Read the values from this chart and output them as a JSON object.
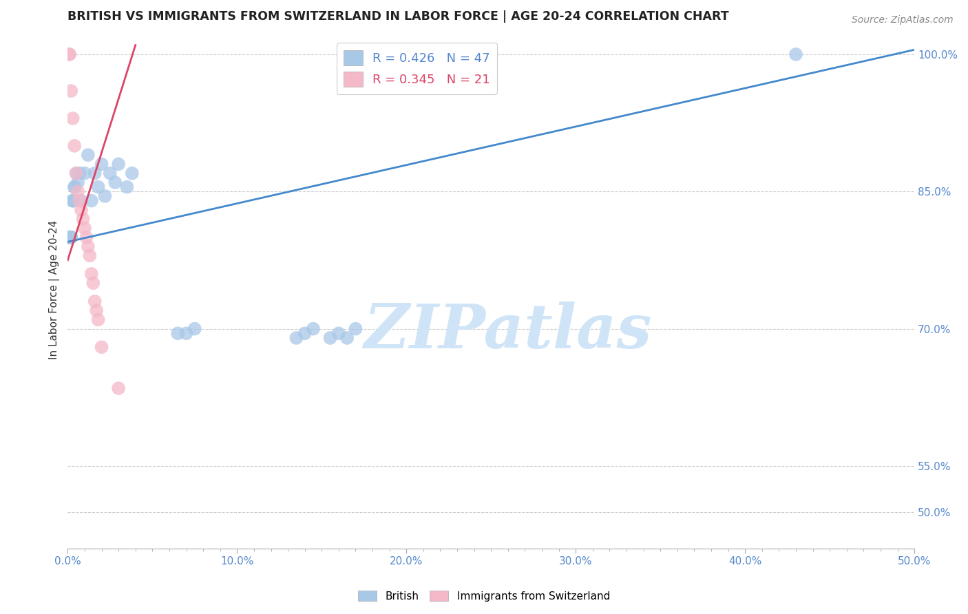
{
  "title": "BRITISH VS IMMIGRANTS FROM SWITZERLAND IN LABOR FORCE | AGE 20-24 CORRELATION CHART",
  "source": "Source: ZipAtlas.com",
  "ylabel": "In Labor Force | Age 20-24",
  "right_ytick_labels": [
    "100.0%",
    "85.0%",
    "70.0%",
    "55.0%",
    "50.0%"
  ],
  "right_ytick_values": [
    1.0,
    0.85,
    0.7,
    0.55,
    0.5
  ],
  "xlim": [
    0.0,
    0.5
  ],
  "ylim": [
    0.46,
    1.025
  ],
  "xtick_labels": [
    "0.0%",
    "",
    "",
    "",
    "",
    "",
    "",
    "",
    "",
    "",
    "10.0%",
    "",
    "",
    "",
    "",
    "",
    "",
    "",
    "",
    "",
    "20.0%",
    "",
    "",
    "",
    "",
    "",
    "",
    "",
    "",
    "",
    "30.0%",
    "",
    "",
    "",
    "",
    "",
    "",
    "",
    "",
    "",
    "40.0%",
    "",
    "",
    "",
    "",
    "",
    "",
    "",
    "",
    "",
    "50.0%"
  ],
  "xtick_values": [
    0.0,
    0.01,
    0.02,
    0.03,
    0.04,
    0.05,
    0.06,
    0.07,
    0.08,
    0.09,
    0.1,
    0.11,
    0.12,
    0.13,
    0.14,
    0.15,
    0.16,
    0.17,
    0.18,
    0.19,
    0.2,
    0.21,
    0.22,
    0.23,
    0.24,
    0.25,
    0.26,
    0.27,
    0.28,
    0.29,
    0.3,
    0.31,
    0.32,
    0.33,
    0.34,
    0.35,
    0.36,
    0.37,
    0.38,
    0.39,
    0.4,
    0.41,
    0.42,
    0.43,
    0.44,
    0.45,
    0.46,
    0.47,
    0.48,
    0.49,
    0.5
  ],
  "xtick_major_labels": [
    "0.0%",
    "10.0%",
    "20.0%",
    "30.0%",
    "40.0%",
    "50.0%"
  ],
  "xtick_major_values": [
    0.0,
    0.1,
    0.2,
    0.3,
    0.4,
    0.5
  ],
  "blue_color": "#a8c8e8",
  "pink_color": "#f4b8c8",
  "blue_line_color": "#4488cc",
  "pink_line_color": "#dd4466",
  "blue_line_x": [
    0.0,
    0.5
  ],
  "blue_line_y": [
    0.795,
    1.005
  ],
  "pink_line_x": [
    0.0,
    0.04
  ],
  "pink_line_y": [
    0.775,
    1.01
  ],
  "watermark": "ZIPatlas",
  "watermark_color": "#d0e4f8",
  "grid_color": "#cccccc",
  "background_color": "#ffffff",
  "british_x": [
    0.001,
    0.001,
    0.001,
    0.001,
    0.001,
    0.001,
    0.001,
    0.001,
    0.001,
    0.001,
    0.002,
    0.002,
    0.002,
    0.002,
    0.003,
    0.003,
    0.003,
    0.003,
    0.004,
    0.004,
    0.005,
    0.006,
    0.007,
    0.008,
    0.01,
    0.012,
    0.014,
    0.016,
    0.018,
    0.02,
    0.022,
    0.025,
    0.028,
    0.03,
    0.035,
    0.038,
    0.065,
    0.07,
    0.075,
    0.135,
    0.14,
    0.145,
    0.155,
    0.16,
    0.165,
    0.17,
    0.43
  ],
  "british_y": [
    0.8,
    0.8,
    0.8,
    0.8,
    0.8,
    0.8,
    0.8,
    0.8,
    0.8,
    0.8,
    0.8,
    0.8,
    0.8,
    0.8,
    0.84,
    0.84,
    0.84,
    0.84,
    0.855,
    0.855,
    0.87,
    0.86,
    0.87,
    0.84,
    0.87,
    0.89,
    0.84,
    0.87,
    0.855,
    0.88,
    0.845,
    0.87,
    0.86,
    0.88,
    0.855,
    0.87,
    0.695,
    0.695,
    0.7,
    0.69,
    0.695,
    0.7,
    0.69,
    0.695,
    0.69,
    0.7,
    1.0
  ],
  "swiss_x": [
    0.001,
    0.001,
    0.002,
    0.003,
    0.004,
    0.005,
    0.006,
    0.007,
    0.008,
    0.009,
    0.01,
    0.011,
    0.012,
    0.013,
    0.014,
    0.015,
    0.016,
    0.017,
    0.018,
    0.02,
    0.03
  ],
  "swiss_y": [
    1.0,
    1.0,
    0.96,
    0.93,
    0.9,
    0.87,
    0.85,
    0.84,
    0.83,
    0.82,
    0.81,
    0.8,
    0.79,
    0.78,
    0.76,
    0.75,
    0.73,
    0.72,
    0.71,
    0.68,
    0.635
  ]
}
